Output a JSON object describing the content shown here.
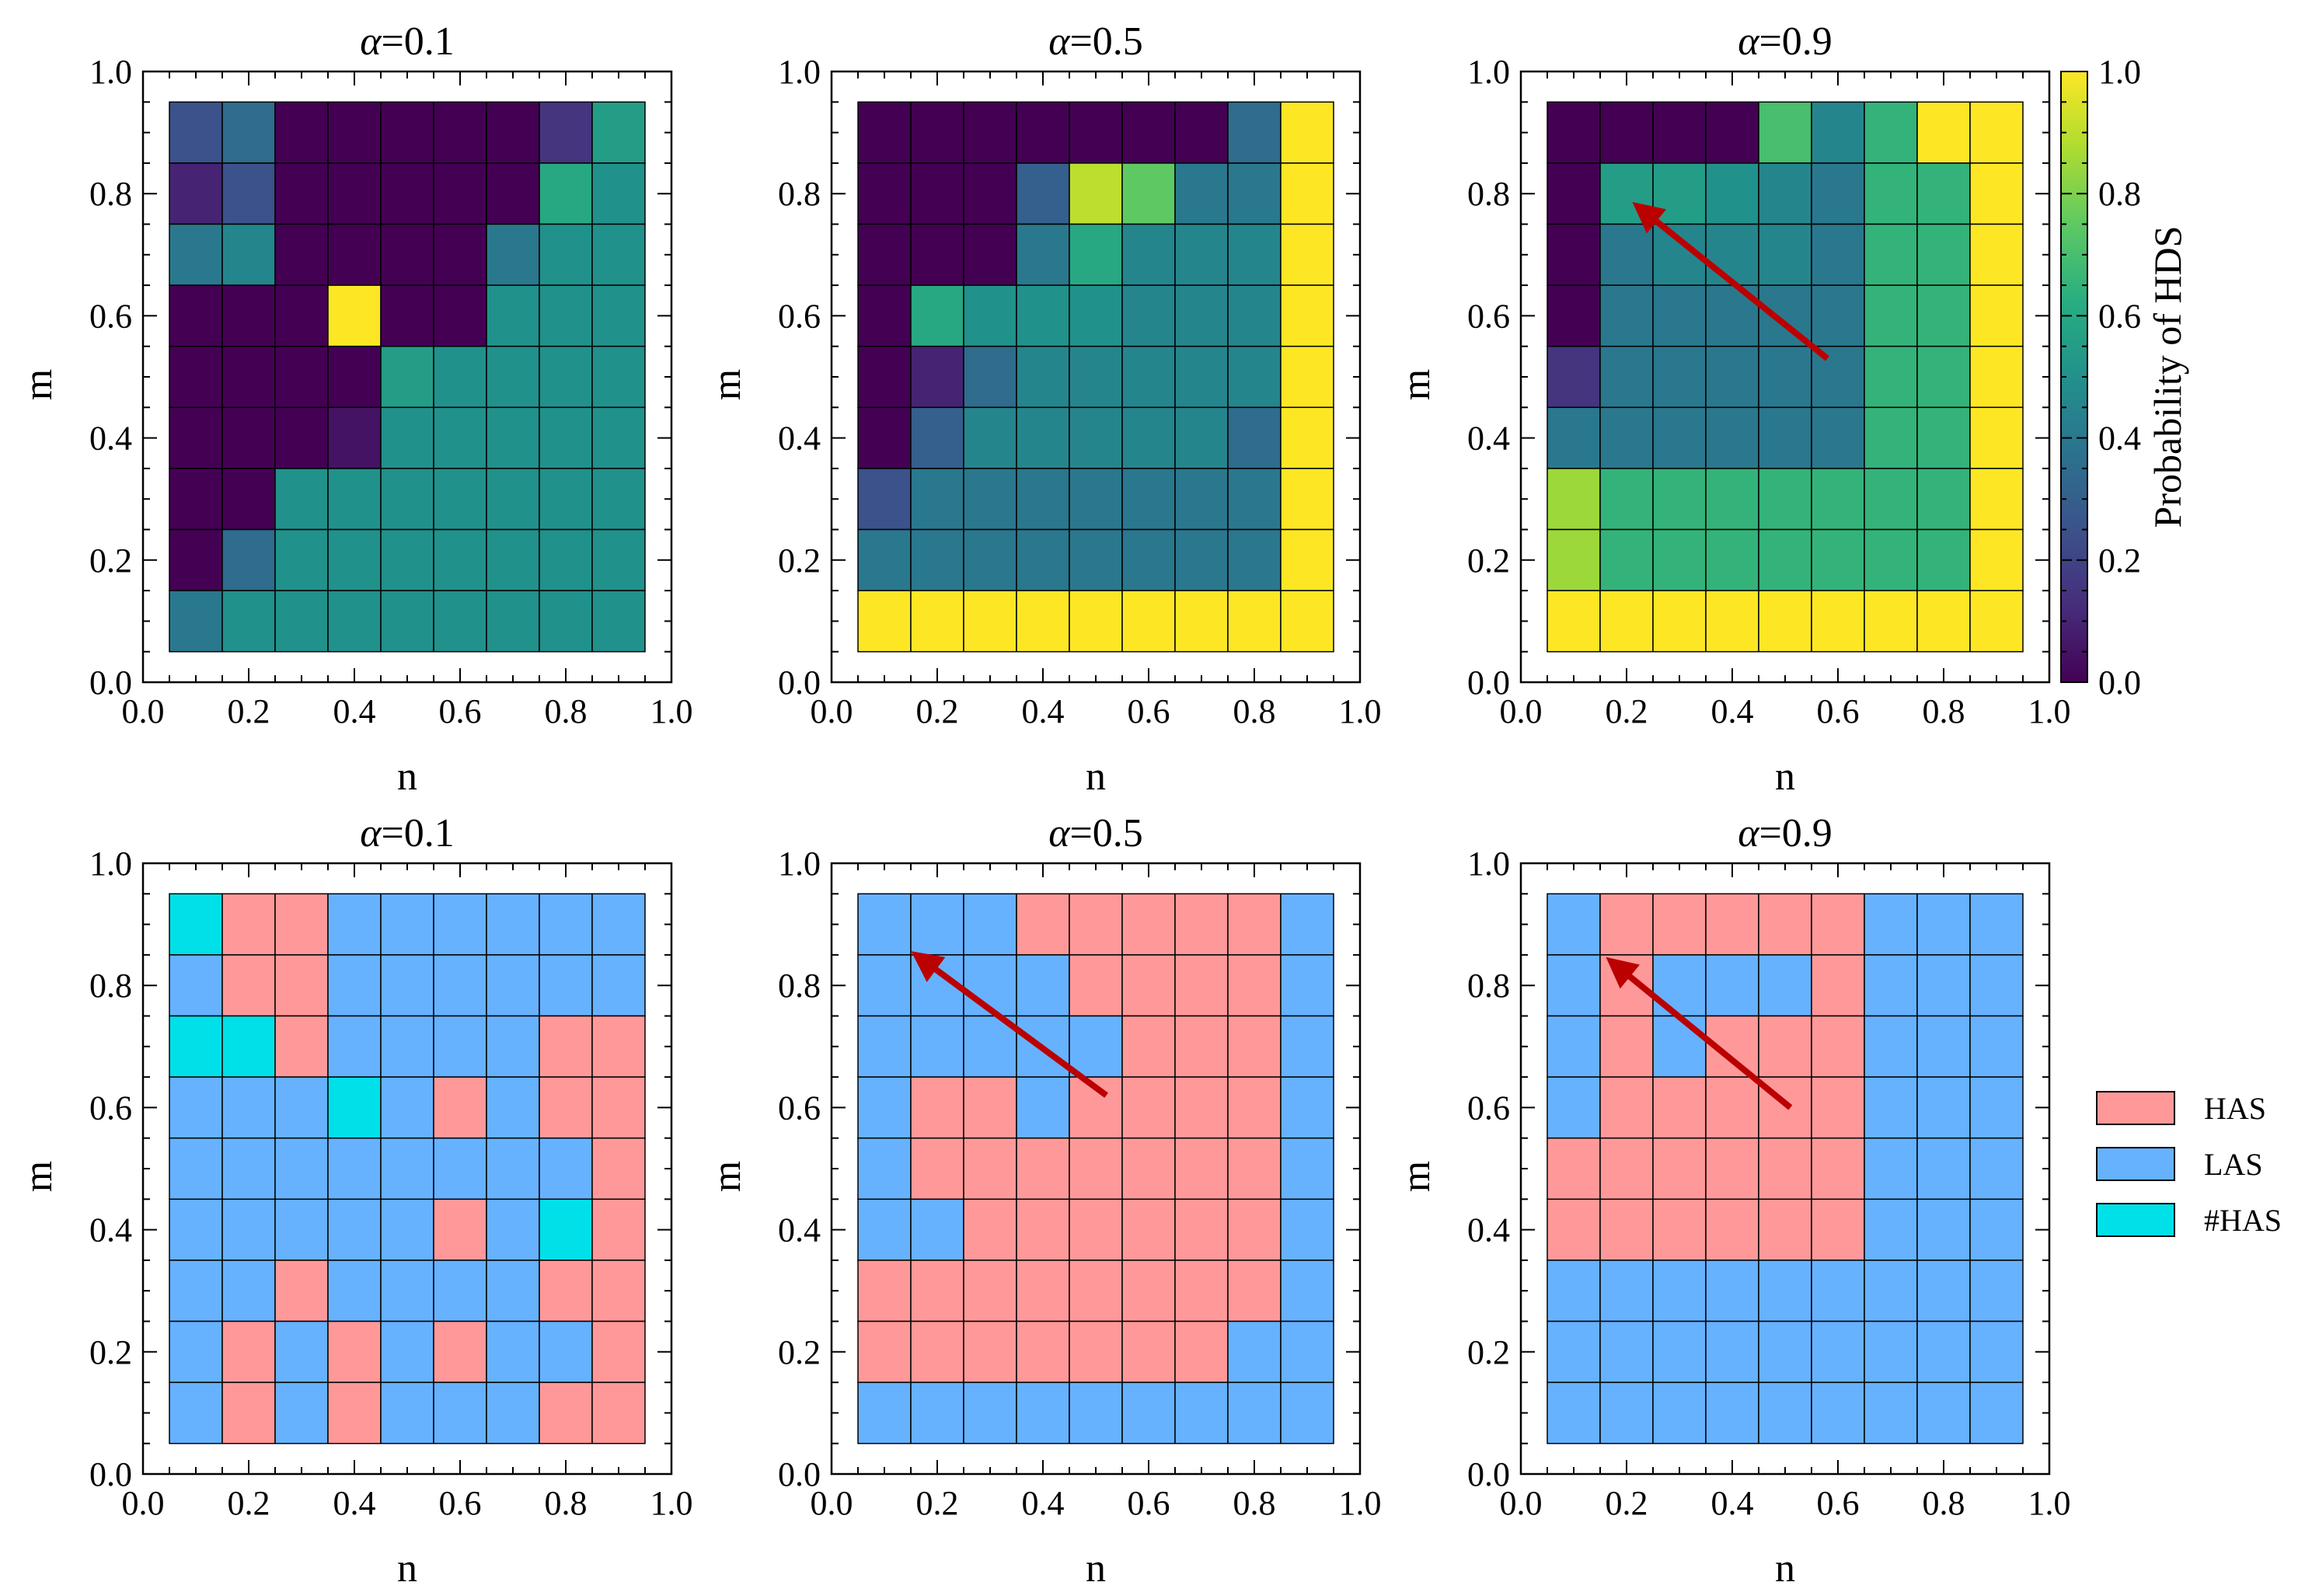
{
  "chart_data": [
    {
      "type": "heatmap",
      "title": "α=0.1",
      "title_symbol": "α",
      "title_value": "=0.1",
      "xlabel": "n",
      "ylabel": "m",
      "xlim": [
        0.0,
        1.0
      ],
      "ylim": [
        0.0,
        1.0
      ],
      "xticks": [
        "0.0",
        "0.2",
        "0.4",
        "0.6",
        "0.8",
        "1.0"
      ],
      "yticks": [
        "0.0",
        "0.2",
        "0.4",
        "0.6",
        "0.8",
        "1.0"
      ],
      "x": [
        0.1,
        0.2,
        0.3,
        0.4,
        0.5,
        0.6,
        0.7,
        0.8,
        0.9
      ],
      "y": [
        0.9,
        0.8,
        0.7,
        0.6,
        0.5,
        0.4,
        0.3,
        0.2,
        0.1
      ],
      "z": [
        [
          0.25,
          0.35,
          0.0,
          0.0,
          0.0,
          0.0,
          0.0,
          0.15,
          0.55
        ],
        [
          0.1,
          0.25,
          0.0,
          0.0,
          0.0,
          0.0,
          0.0,
          0.6,
          0.5
        ],
        [
          0.4,
          0.45,
          0.0,
          0.0,
          0.0,
          0.0,
          0.4,
          0.5,
          0.5
        ],
        [
          0.0,
          0.0,
          0.0,
          1.0,
          0.0,
          0.0,
          0.5,
          0.5,
          0.5
        ],
        [
          0.0,
          0.0,
          0.0,
          0.0,
          0.55,
          0.5,
          0.5,
          0.5,
          0.5
        ],
        [
          0.0,
          0.0,
          0.0,
          0.05,
          0.5,
          0.5,
          0.5,
          0.5,
          0.5
        ],
        [
          0.0,
          0.0,
          0.5,
          0.5,
          0.5,
          0.5,
          0.5,
          0.5,
          0.5
        ],
        [
          0.0,
          0.35,
          0.5,
          0.5,
          0.5,
          0.5,
          0.5,
          0.5,
          0.5
        ],
        [
          0.4,
          0.5,
          0.5,
          0.5,
          0.5,
          0.5,
          0.5,
          0.5,
          0.5
        ]
      ]
    },
    {
      "type": "heatmap",
      "title": "α=0.5",
      "title_symbol": "α",
      "title_value": "=0.5",
      "xlabel": "n",
      "ylabel": "m",
      "xlim": [
        0.0,
        1.0
      ],
      "ylim": [
        0.0,
        1.0
      ],
      "xticks": [
        "0.0",
        "0.2",
        "0.4",
        "0.6",
        "0.8",
        "1.0"
      ],
      "yticks": [
        "0.0",
        "0.2",
        "0.4",
        "0.6",
        "0.8",
        "1.0"
      ],
      "x": [
        0.1,
        0.2,
        0.3,
        0.4,
        0.5,
        0.6,
        0.7,
        0.8,
        0.9
      ],
      "y": [
        0.9,
        0.8,
        0.7,
        0.6,
        0.5,
        0.4,
        0.3,
        0.2,
        0.1
      ],
      "z": [
        [
          0.0,
          0.0,
          0.0,
          0.0,
          0.0,
          0.0,
          0.0,
          0.35,
          1.0
        ],
        [
          0.0,
          0.0,
          0.0,
          0.3,
          0.9,
          0.75,
          0.4,
          0.4,
          1.0
        ],
        [
          0.0,
          0.0,
          0.0,
          0.4,
          0.6,
          0.45,
          0.45,
          0.45,
          1.0
        ],
        [
          0.0,
          0.6,
          0.5,
          0.5,
          0.5,
          0.45,
          0.45,
          0.45,
          1.0
        ],
        [
          0.0,
          0.1,
          0.35,
          0.45,
          0.45,
          0.45,
          0.45,
          0.45,
          1.0
        ],
        [
          0.0,
          0.3,
          0.45,
          0.45,
          0.45,
          0.45,
          0.45,
          0.35,
          1.0
        ],
        [
          0.25,
          0.4,
          0.4,
          0.4,
          0.4,
          0.4,
          0.4,
          0.4,
          1.0
        ],
        [
          0.4,
          0.4,
          0.4,
          0.4,
          0.4,
          0.4,
          0.4,
          0.4,
          1.0
        ],
        [
          1.0,
          1.0,
          1.0,
          1.0,
          1.0,
          1.0,
          1.0,
          1.0,
          1.0
        ]
      ]
    },
    {
      "type": "heatmap",
      "title": "α=0.9",
      "title_symbol": "α",
      "title_value": "=0.9",
      "xlabel": "n",
      "ylabel": "m",
      "xlim": [
        0.0,
        1.0
      ],
      "ylim": [
        0.0,
        1.0
      ],
      "xticks": [
        "0.0",
        "0.2",
        "0.4",
        "0.6",
        "0.8",
        "1.0"
      ],
      "yticks": [
        "0.0",
        "0.2",
        "0.4",
        "0.6",
        "0.8",
        "1.0"
      ],
      "x": [
        0.1,
        0.2,
        0.3,
        0.4,
        0.5,
        0.6,
        0.7,
        0.8,
        0.9
      ],
      "y": [
        0.9,
        0.8,
        0.7,
        0.6,
        0.5,
        0.4,
        0.3,
        0.2,
        0.1
      ],
      "z": [
        [
          0.0,
          0.0,
          0.0,
          0.0,
          0.7,
          0.45,
          0.65,
          1.0,
          1.0
        ],
        [
          0.0,
          0.55,
          0.55,
          0.5,
          0.45,
          0.4,
          0.65,
          0.65,
          1.0
        ],
        [
          0.0,
          0.4,
          0.45,
          0.45,
          0.45,
          0.4,
          0.65,
          0.65,
          1.0
        ],
        [
          0.0,
          0.4,
          0.4,
          0.4,
          0.4,
          0.4,
          0.65,
          0.65,
          1.0
        ],
        [
          0.15,
          0.4,
          0.4,
          0.4,
          0.4,
          0.4,
          0.65,
          0.65,
          1.0
        ],
        [
          0.4,
          0.4,
          0.4,
          0.4,
          0.4,
          0.4,
          0.65,
          0.65,
          1.0
        ],
        [
          0.85,
          0.65,
          0.65,
          0.65,
          0.65,
          0.65,
          0.65,
          0.65,
          1.0
        ],
        [
          0.85,
          0.65,
          0.65,
          0.65,
          0.65,
          0.65,
          0.65,
          0.65,
          1.0
        ],
        [
          1.0,
          1.0,
          1.0,
          1.0,
          1.0,
          1.0,
          1.0,
          1.0,
          1.0
        ]
      ],
      "arrow": {
        "from": [
          0.58,
          0.53
        ],
        "to": [
          0.22,
          0.78
        ]
      }
    },
    {
      "type": "heatmap",
      "title": "α=0.1",
      "title_symbol": "α",
      "title_value": "=0.1",
      "xlabel": "n",
      "ylabel": "m",
      "xlim": [
        0.0,
        1.0
      ],
      "ylim": [
        0.0,
        1.0
      ],
      "xticks": [
        "0.0",
        "0.2",
        "0.4",
        "0.6",
        "0.8",
        "1.0"
      ],
      "yticks": [
        "0.0",
        "0.2",
        "0.4",
        "0.6",
        "0.8",
        "1.0"
      ],
      "x": [
        0.1,
        0.2,
        0.3,
        0.4,
        0.5,
        0.6,
        0.7,
        0.8,
        0.9
      ],
      "y": [
        0.9,
        0.8,
        0.7,
        0.6,
        0.5,
        0.4,
        0.3,
        0.2,
        0.1
      ],
      "categories_grid": [
        [
          "#HAS",
          "HAS",
          "HAS",
          "LAS",
          "LAS",
          "LAS",
          "LAS",
          "LAS",
          "LAS"
        ],
        [
          "LAS",
          "HAS",
          "HAS",
          "LAS",
          "LAS",
          "LAS",
          "LAS",
          "LAS",
          "LAS"
        ],
        [
          "#HAS",
          "#HAS",
          "HAS",
          "LAS",
          "LAS",
          "LAS",
          "LAS",
          "HAS",
          "HAS"
        ],
        [
          "LAS",
          "LAS",
          "LAS",
          "#HAS",
          "LAS",
          "HAS",
          "LAS",
          "HAS",
          "HAS"
        ],
        [
          "LAS",
          "LAS",
          "LAS",
          "LAS",
          "LAS",
          "LAS",
          "LAS",
          "LAS",
          "HAS"
        ],
        [
          "LAS",
          "LAS",
          "LAS",
          "LAS",
          "LAS",
          "HAS",
          "LAS",
          "#HAS",
          "HAS"
        ],
        [
          "LAS",
          "LAS",
          "HAS",
          "LAS",
          "LAS",
          "LAS",
          "LAS",
          "HAS",
          "HAS"
        ],
        [
          "LAS",
          "HAS",
          "LAS",
          "HAS",
          "LAS",
          "HAS",
          "LAS",
          "LAS",
          "HAS"
        ],
        [
          "LAS",
          "HAS",
          "LAS",
          "HAS",
          "LAS",
          "LAS",
          "LAS",
          "HAS",
          "HAS"
        ]
      ]
    },
    {
      "type": "heatmap",
      "title": "α=0.5",
      "title_symbol": "α",
      "title_value": "=0.5",
      "xlabel": "n",
      "ylabel": "m",
      "xlim": [
        0.0,
        1.0
      ],
      "ylim": [
        0.0,
        1.0
      ],
      "xticks": [
        "0.0",
        "0.2",
        "0.4",
        "0.6",
        "0.8",
        "1.0"
      ],
      "yticks": [
        "0.0",
        "0.2",
        "0.4",
        "0.6",
        "0.8",
        "1.0"
      ],
      "x": [
        0.1,
        0.2,
        0.3,
        0.4,
        0.5,
        0.6,
        0.7,
        0.8,
        0.9
      ],
      "y": [
        0.9,
        0.8,
        0.7,
        0.6,
        0.5,
        0.4,
        0.3,
        0.2,
        0.1
      ],
      "categories_grid": [
        [
          "LAS",
          "LAS",
          "LAS",
          "HAS",
          "HAS",
          "HAS",
          "HAS",
          "HAS",
          "LAS"
        ],
        [
          "LAS",
          "LAS",
          "LAS",
          "LAS",
          "HAS",
          "HAS",
          "HAS",
          "HAS",
          "LAS"
        ],
        [
          "LAS",
          "LAS",
          "LAS",
          "LAS",
          "LAS",
          "HAS",
          "HAS",
          "HAS",
          "LAS"
        ],
        [
          "LAS",
          "HAS",
          "HAS",
          "LAS",
          "HAS",
          "HAS",
          "HAS",
          "HAS",
          "LAS"
        ],
        [
          "LAS",
          "HAS",
          "HAS",
          "HAS",
          "HAS",
          "HAS",
          "HAS",
          "HAS",
          "LAS"
        ],
        [
          "LAS",
          "LAS",
          "HAS",
          "HAS",
          "HAS",
          "HAS",
          "HAS",
          "HAS",
          "LAS"
        ],
        [
          "HAS",
          "HAS",
          "HAS",
          "HAS",
          "HAS",
          "HAS",
          "HAS",
          "HAS",
          "LAS"
        ],
        [
          "HAS",
          "HAS",
          "HAS",
          "HAS",
          "HAS",
          "HAS",
          "HAS",
          "LAS",
          "LAS"
        ],
        [
          "LAS",
          "LAS",
          "LAS",
          "LAS",
          "LAS",
          "LAS",
          "LAS",
          "LAS",
          "LAS"
        ]
      ],
      "arrow": {
        "from": [
          0.52,
          0.62
        ],
        "to": [
          0.16,
          0.85
        ]
      }
    },
    {
      "type": "heatmap",
      "title": "α=0.9",
      "title_symbol": "α",
      "title_value": "=0.9",
      "xlabel": "n",
      "ylabel": "m",
      "xlim": [
        0.0,
        1.0
      ],
      "ylim": [
        0.0,
        1.0
      ],
      "xticks": [
        "0.0",
        "0.2",
        "0.4",
        "0.6",
        "0.8",
        "1.0"
      ],
      "yticks": [
        "0.0",
        "0.2",
        "0.4",
        "0.6",
        "0.8",
        "1.0"
      ],
      "x": [
        0.1,
        0.2,
        0.3,
        0.4,
        0.5,
        0.6,
        0.7,
        0.8,
        0.9
      ],
      "y": [
        0.9,
        0.8,
        0.7,
        0.6,
        0.5,
        0.4,
        0.3,
        0.2,
        0.1
      ],
      "categories_grid": [
        [
          "LAS",
          "HAS",
          "HAS",
          "HAS",
          "HAS",
          "HAS",
          "LAS",
          "LAS",
          "LAS"
        ],
        [
          "LAS",
          "HAS",
          "LAS",
          "LAS",
          "LAS",
          "HAS",
          "LAS",
          "LAS",
          "LAS"
        ],
        [
          "LAS",
          "HAS",
          "LAS",
          "HAS",
          "HAS",
          "HAS",
          "LAS",
          "LAS",
          "LAS"
        ],
        [
          "LAS",
          "HAS",
          "HAS",
          "HAS",
          "HAS",
          "HAS",
          "LAS",
          "LAS",
          "LAS"
        ],
        [
          "HAS",
          "HAS",
          "HAS",
          "HAS",
          "HAS",
          "HAS",
          "LAS",
          "LAS",
          "LAS"
        ],
        [
          "HAS",
          "HAS",
          "HAS",
          "HAS",
          "HAS",
          "HAS",
          "LAS",
          "LAS",
          "LAS"
        ],
        [
          "LAS",
          "LAS",
          "LAS",
          "LAS",
          "LAS",
          "LAS",
          "LAS",
          "LAS",
          "LAS"
        ],
        [
          "LAS",
          "LAS",
          "LAS",
          "LAS",
          "LAS",
          "LAS",
          "LAS",
          "LAS",
          "LAS"
        ],
        [
          "LAS",
          "LAS",
          "LAS",
          "LAS",
          "LAS",
          "LAS",
          "LAS",
          "LAS",
          "LAS"
        ]
      ],
      "arrow": {
        "from": [
          0.51,
          0.6
        ],
        "to": [
          0.17,
          0.84
        ]
      }
    }
  ],
  "colorbar": {
    "label": "Probability of HDS",
    "ticks": [
      "0.0",
      "0.2",
      "0.4",
      "0.6",
      "0.8",
      "1.0"
    ],
    "range": [
      0.0,
      1.0
    ],
    "colormap": "viridis"
  },
  "legend": {
    "placement": "right of bottom row",
    "entries": [
      {
        "label": "HAS",
        "color": "#ff9999"
      },
      {
        "label": "LAS",
        "color": "#66b2ff"
      },
      {
        "label": "#HAS",
        "color": "#00e0e8"
      }
    ]
  },
  "colors": {
    "arrow": "#bb0000",
    "grid_line": "#000000"
  }
}
